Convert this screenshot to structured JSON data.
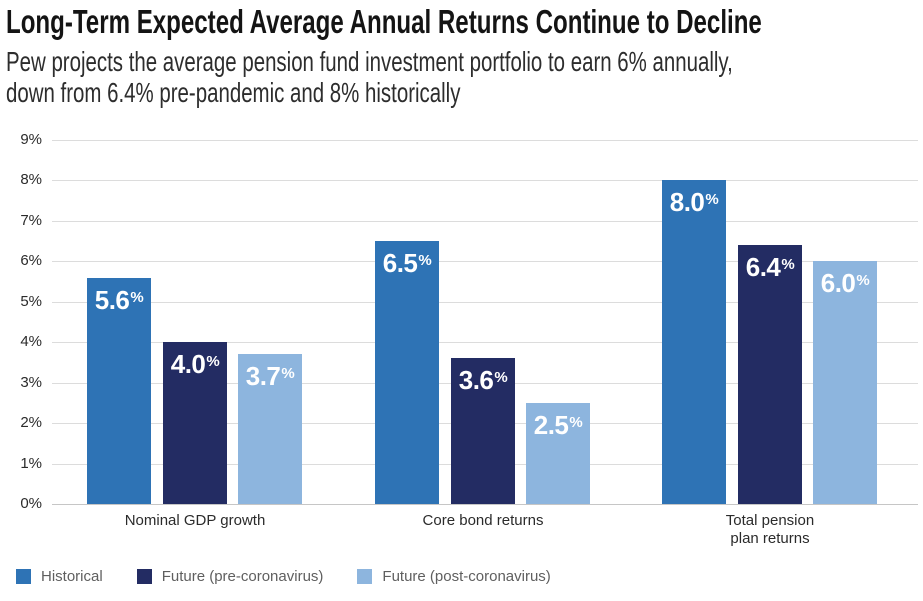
{
  "chart_data": {
    "type": "bar",
    "title": "Long-Term Expected Average Annual Returns Continue to Decline",
    "subtitle_lines": [
      "Pew projects the average pension fund investment portfolio to earn 6% annually,",
      "down from 6.4% pre-pandemic and 8% historically"
    ],
    "categories": [
      "Nominal GDP growth",
      "Core bond returns",
      "Total pension\nplan returns"
    ],
    "series": [
      {
        "name": "Historical",
        "color": "#2E73B5",
        "values": [
          5.6,
          6.5,
          8.0
        ]
      },
      {
        "name": "Future (pre-coronavirus)",
        "color": "#232C63",
        "values": [
          4.0,
          3.6,
          6.4
        ]
      },
      {
        "name": "Future (post-coronavirus)",
        "color": "#8DB5DE",
        "values": [
          3.7,
          2.5,
          6.0
        ]
      }
    ],
    "ylim": [
      0,
      9
    ],
    "yticks": [
      "9%",
      "8%",
      "7%",
      "6%",
      "5%",
      "4%",
      "3%",
      "2%",
      "1%",
      "0%"
    ],
    "value_label_suffix": "%",
    "grid": true,
    "legend_position": "bottom"
  }
}
